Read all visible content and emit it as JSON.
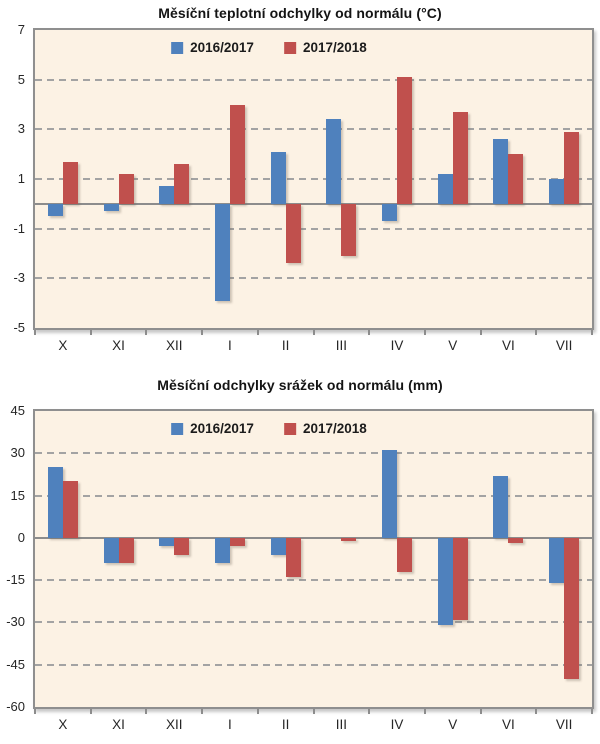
{
  "page": {
    "background": "#ffffff"
  },
  "colors": {
    "series1": "#4f81bd",
    "series2": "#c0504d",
    "plot_background": "#fcf2e4",
    "plot_border": "#8f8f8f",
    "gridline": "#a3a3a3",
    "zero_line": "#8c8c8c",
    "text": "#1c1c1c"
  },
  "chart_data": [
    {
      "type": "bar",
      "title": "Měsíční teplotní odchylky od normálu (°C)",
      "categories": [
        "X",
        "XI",
        "XII",
        "I",
        "II",
        "III",
        "IV",
        "V",
        "VI",
        "VII"
      ],
      "series": [
        {
          "name": "2016/2017",
          "color": "#4f81bd",
          "values": [
            -0.5,
            -0.3,
            0.7,
            -3.9,
            2.1,
            3.4,
            -0.7,
            1.2,
            2.6,
            1.0
          ]
        },
        {
          "name": "2017/2018",
          "color": "#c0504d",
          "values": [
            1.7,
            1.2,
            1.6,
            4.0,
            -2.4,
            -2.1,
            5.1,
            3.7,
            2.0,
            2.9
          ]
        }
      ],
      "xlabel": "",
      "ylabel": "",
      "ylim": [
        -5,
        7
      ],
      "yticks": [
        7,
        5,
        3,
        1,
        -1,
        -3,
        -5
      ],
      "grid": "horizontal-dashed",
      "legend_position": "top-center"
    },
    {
      "type": "bar",
      "title": "Měsíční odchylky srážek od normálu (mm)",
      "categories": [
        "X",
        "XI",
        "XII",
        "I",
        "II",
        "III",
        "IV",
        "V",
        "VI",
        "VII"
      ],
      "series": [
        {
          "name": "2016/2017",
          "color": "#4f81bd",
          "values": [
            25,
            -9,
            -3,
            -9,
            -6,
            0,
            31,
            -31,
            22,
            -16
          ]
        },
        {
          "name": "2017/2018",
          "color": "#c0504d",
          "values": [
            20,
            -9,
            -6,
            -3,
            -14,
            -1,
            -12,
            -29,
            -2,
            -50
          ]
        }
      ],
      "xlabel": "",
      "ylabel": "",
      "ylim": [
        -60,
        45
      ],
      "yticks": [
        45,
        30,
        15,
        0,
        -15,
        -30,
        -45,
        -60
      ],
      "grid": "horizontal-dashed",
      "legend_position": "top-center"
    }
  ]
}
